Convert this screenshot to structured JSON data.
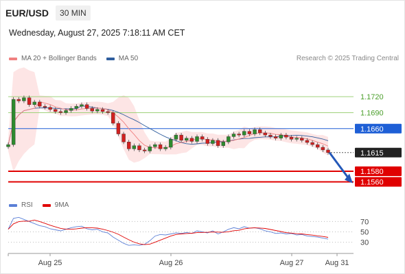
{
  "header": {
    "symbol": "EUR/USD",
    "timeframe": "30 MIN"
  },
  "datetime": "Wednesday, August 27, 2025 7:18:11 AM CET",
  "legend": {
    "ma20": {
      "label": "MA 20 + Bollinger Bands",
      "color": "#f08080"
    },
    "ma50": {
      "label": "MA 50",
      "color": "#2f5e9e"
    }
  },
  "research": "Research © 2025 Trading Central",
  "rsi_legend": {
    "rsi": {
      "label": "RSI",
      "color": "#5b7fd6"
    },
    "ma9": {
      "label": "9MA",
      "color": "#e00000"
    }
  },
  "chart_data": {
    "type": "candlestick",
    "price_axis": {
      "min": 1.1535,
      "max": 1.176
    },
    "x_labels": [
      "Aug 25",
      "Aug 26",
      "Aug 27",
      "Aug 31"
    ],
    "levels": [
      {
        "value": 1.172,
        "label": "1.1720",
        "kind": "resistance",
        "color": "#9fd27a"
      },
      {
        "value": 1.169,
        "label": "1.1690",
        "kind": "resistance",
        "color": "#9fd27a"
      },
      {
        "value": 1.166,
        "label": "1.1660",
        "kind": "pivot",
        "color": "#1e5fd6"
      },
      {
        "value": 1.1615,
        "label": "1.1615",
        "kind": "last",
        "color": "#222222"
      },
      {
        "value": 1.158,
        "label": "1.1580",
        "kind": "support",
        "color": "#e00000"
      },
      {
        "value": 1.156,
        "label": "1.1560",
        "kind": "support",
        "color": "#e00000"
      }
    ],
    "close_path": [
      1.163,
      1.1715,
      1.1712,
      1.1718,
      1.1705,
      1.171,
      1.1702,
      1.17,
      1.1696,
      1.1692,
      1.169,
      1.1694,
      1.1698,
      1.1702,
      1.1705,
      1.1698,
      1.1693,
      1.1696,
      1.1692,
      1.169,
      1.167,
      1.165,
      1.1635,
      1.1622,
      1.1628,
      1.162,
      1.1618,
      1.1626,
      1.163,
      1.1622,
      1.1625,
      1.164,
      1.1648,
      1.1638,
      1.1642,
      1.1636,
      1.1645,
      1.164,
      1.1632,
      1.1638,
      1.1628,
      1.1635,
      1.1645,
      1.165,
      1.1648,
      1.1655,
      1.165,
      1.1658,
      1.1652,
      1.1648,
      1.1645,
      1.1642,
      1.1648,
      1.1644,
      1.164,
      1.1642,
      1.1638,
      1.1634,
      1.163,
      1.1625,
      1.162,
      1.1615
    ],
    "rsi_axis": {
      "min": 15,
      "max": 85
    },
    "rsi_levels": [
      70,
      50,
      30
    ],
    "rsi_path": [
      55,
      76,
      78,
      74,
      70,
      66,
      62,
      60,
      56,
      54,
      52,
      55,
      58,
      60,
      61,
      56,
      54,
      55,
      50,
      48,
      40,
      34,
      28,
      24,
      25,
      24,
      26,
      33,
      42,
      45,
      44,
      46,
      48,
      47,
      49,
      47,
      52,
      50,
      48,
      52,
      46,
      50,
      55,
      58,
      56,
      60,
      57,
      58,
      56,
      52,
      50,
      47,
      48,
      46,
      47,
      44,
      45,
      42,
      41,
      40,
      38,
      36
    ]
  }
}
